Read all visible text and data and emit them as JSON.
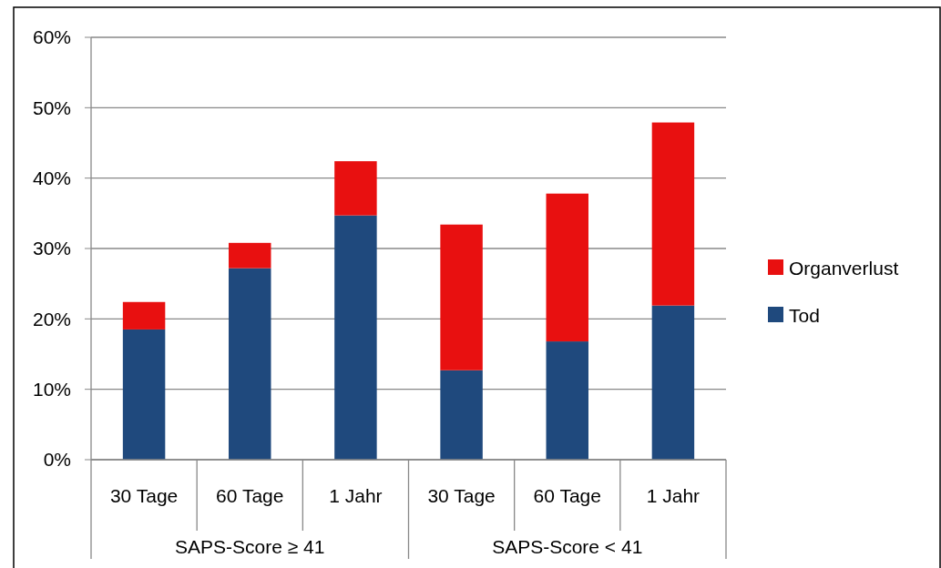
{
  "chart_data": {
    "type": "bar",
    "stacked": true,
    "categories": [
      "30 Tage",
      "60 Tage",
      "1 Jahr",
      "30 Tage",
      "60 Tage",
      "1 Jahr"
    ],
    "series": [
      {
        "name": "Tod",
        "color": "#1f497d",
        "values": [
          18.5,
          27.2,
          34.7,
          12.7,
          16.8,
          21.9
        ]
      },
      {
        "name": "Organverlust",
        "color": "#e81010",
        "values": [
          3.9,
          3.6,
          7.7,
          20.7,
          21.0,
          26.0
        ]
      }
    ],
    "ylim": [
      0,
      60
    ],
    "yticks": [
      {
        "value": 0,
        "label": "0%"
      },
      {
        "value": 10,
        "label": "10%"
      },
      {
        "value": 20,
        "label": "20%"
      },
      {
        "value": 30,
        "label": "30%"
      },
      {
        "value": 40,
        "label": "40%"
      },
      {
        "value": 50,
        "label": "50%"
      },
      {
        "value": 60,
        "label": "60%"
      }
    ],
    "grid": "y",
    "legend": "right",
    "annotations": [
      "SAPS-Score ≥ 41",
      "SAPS-Score < 41"
    ]
  }
}
